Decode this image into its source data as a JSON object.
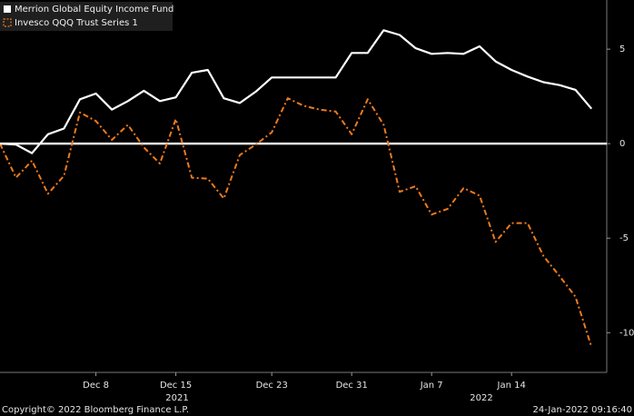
{
  "chart_data": {
    "type": "line",
    "categories": [
      null,
      null,
      null,
      null,
      null,
      null,
      "Dec 8",
      null,
      null,
      null,
      null,
      "Dec 15",
      null,
      null,
      null,
      null,
      null,
      "Dec 23",
      null,
      null,
      null,
      null,
      "Dec 31",
      null,
      null,
      null,
      null,
      "Jan 7",
      null,
      null,
      null,
      null,
      "Jan 14",
      null,
      null,
      null,
      null,
      null
    ],
    "year_labels": [
      "2021",
      "2022"
    ],
    "series": [
      {
        "name": "Merrion Global Equity Income Fund",
        "color": "#ffffff",
        "dashed": false,
        "values": [
          0,
          -0.05,
          -0.5,
          0.5,
          0.8,
          2.35,
          2.65,
          1.8,
          2.25,
          2.8,
          2.25,
          2.45,
          3.75,
          3.9,
          2.4,
          2.15,
          2.75,
          3.5,
          3.5,
          3.5,
          3.5,
          3.5,
          4.8,
          4.8,
          6.0,
          5.75,
          5.05,
          4.75,
          4.8,
          4.75,
          5.15,
          4.35,
          3.9,
          3.55,
          3.25,
          3.1,
          2.85,
          1.85
        ]
      },
      {
        "name": "Invesco QQQ Trust Series 1",
        "color": "#f07a1a",
        "dashed": true,
        "values": [
          0,
          -1.8,
          -0.9,
          -2.65,
          -1.7,
          1.65,
          1.2,
          0.2,
          1.0,
          -0.2,
          -1.05,
          1.3,
          -1.8,
          -1.85,
          -2.9,
          -0.6,
          -0.05,
          0.6,
          2.4,
          2.0,
          1.8,
          1.7,
          0.5,
          2.35,
          1.0,
          -2.55,
          -2.25,
          -3.75,
          -3.45,
          -2.35,
          -2.75,
          -5.2,
          -4.2,
          -4.2,
          -5.95,
          -7.0,
          -8.1,
          -10.75
        ]
      }
    ],
    "ylim": [
      -12.1,
      7.6
    ],
    "yticks": [
      5,
      0,
      -5,
      -10
    ],
    "zero_line": true,
    "legend": "top-left",
    "source": "Copyright© 2022 Bloomberg Finance L.P.",
    "timestamp": "24-Jan-2022 09:16:40"
  }
}
